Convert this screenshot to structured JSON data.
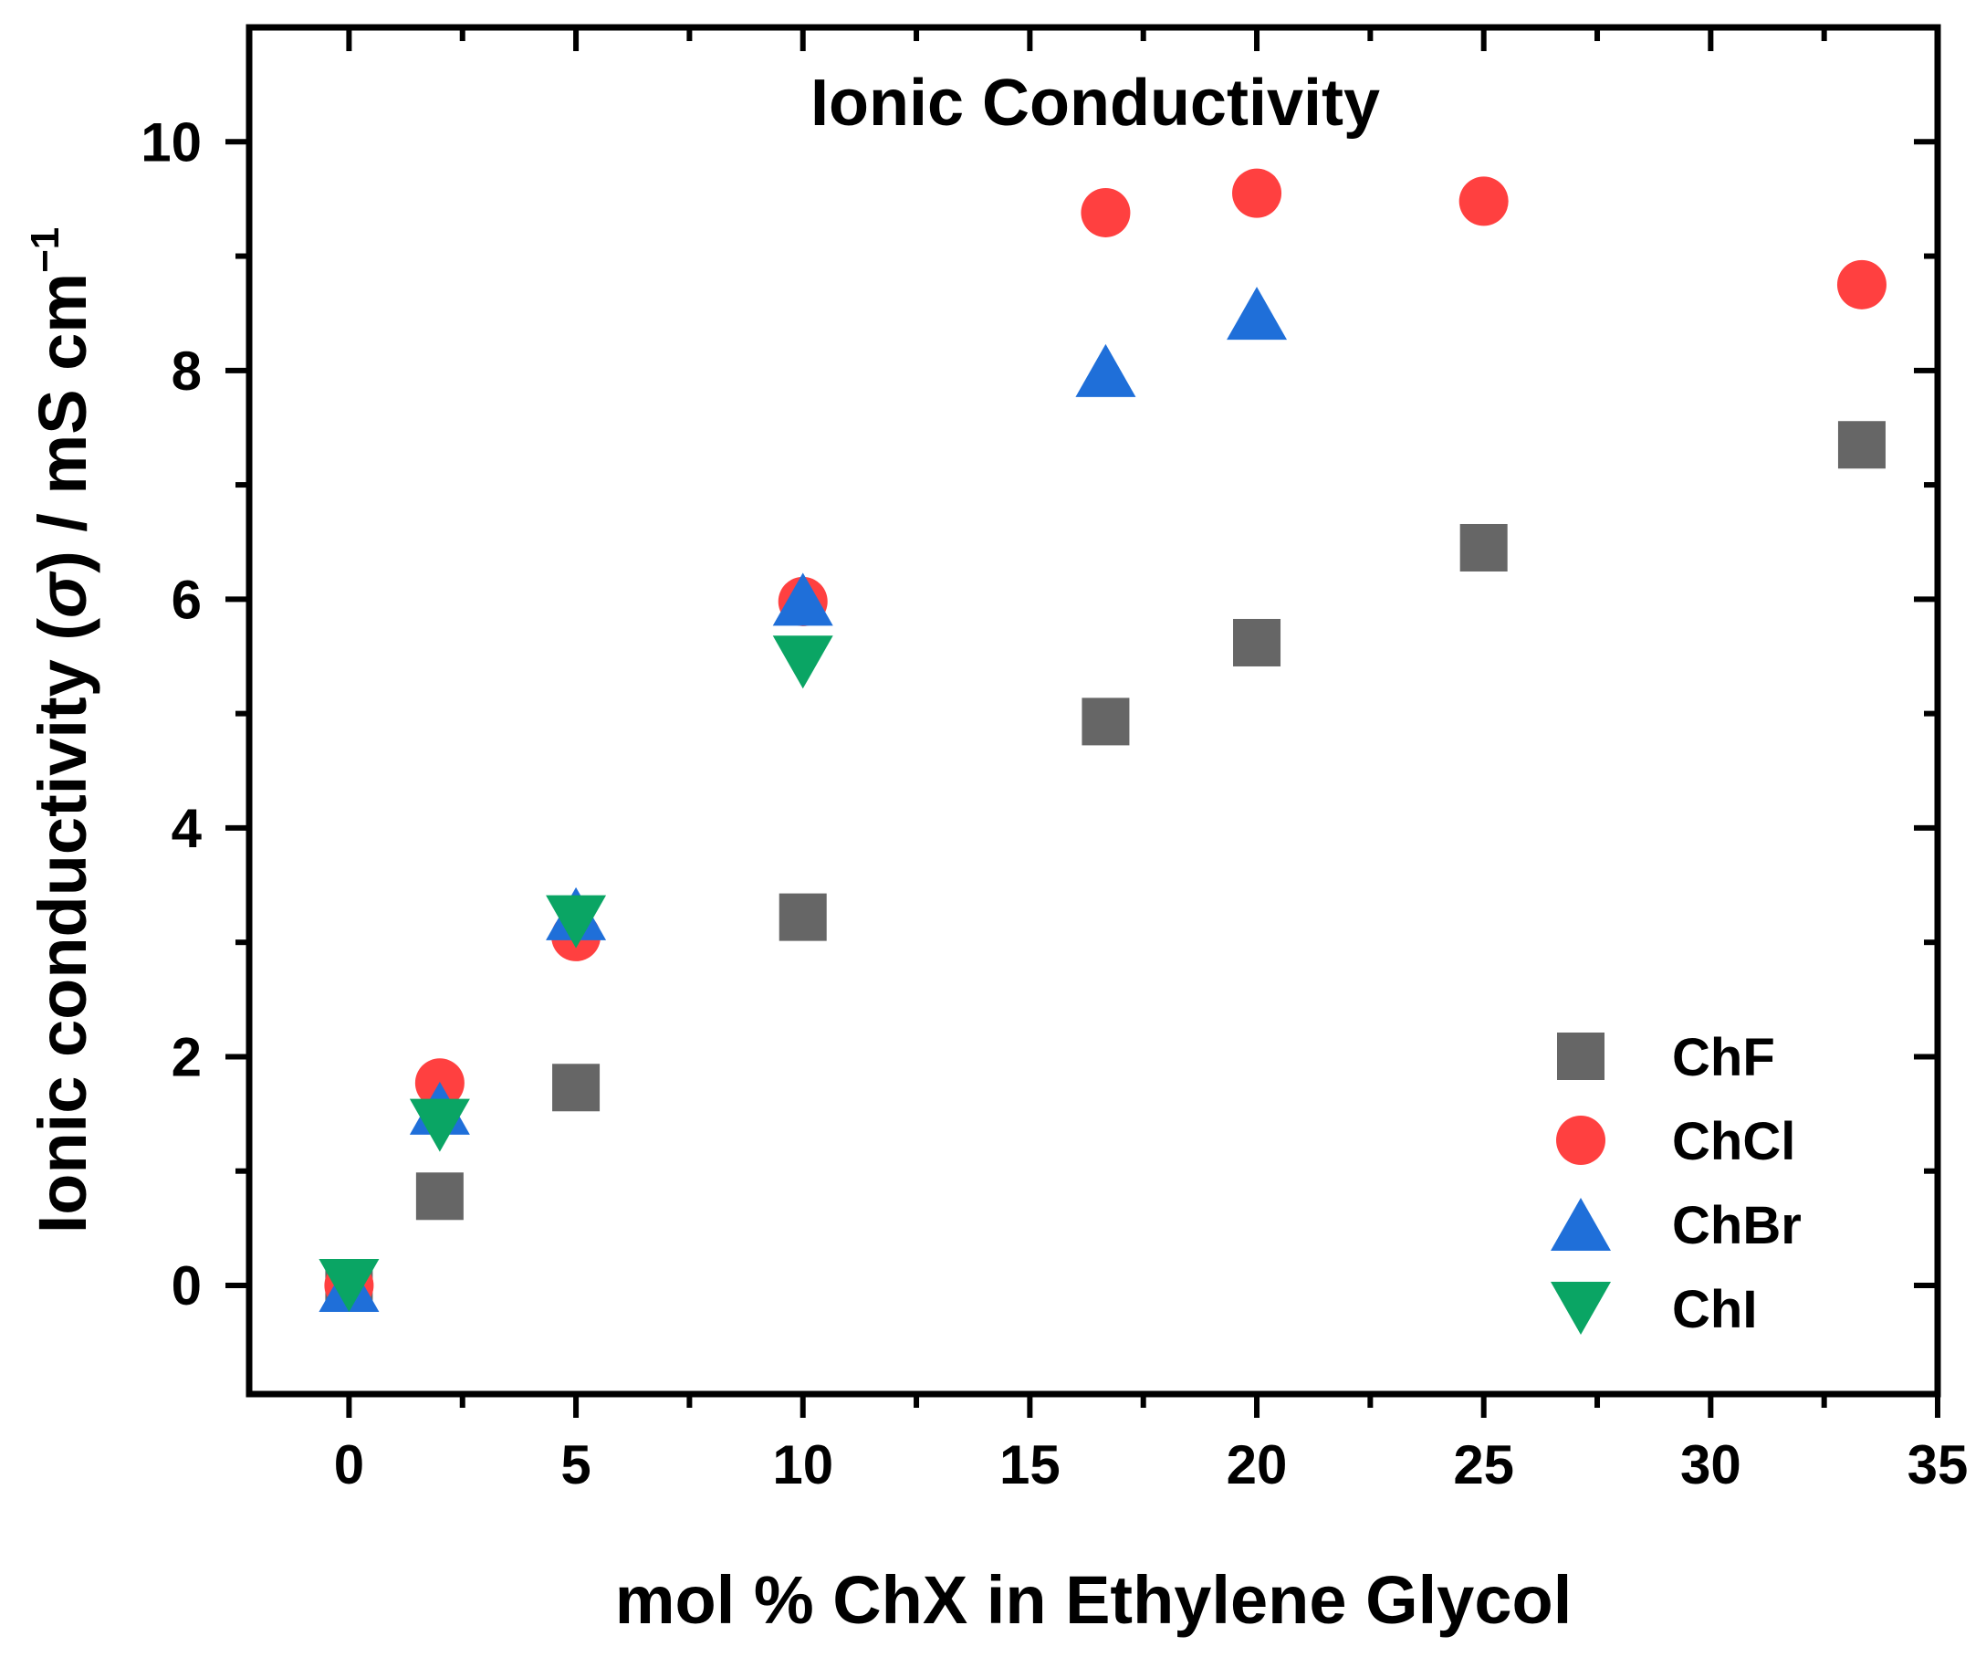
{
  "chart_data": {
    "type": "scatter",
    "title": "Ionic Conductivity",
    "xlabel": "mol % ChX in Ethylene Glycol",
    "ylabel": "Ionic conductivity (σ) / mS cm⁻¹",
    "ylabel_parts": {
      "main": "Ionic conductivity (",
      "sigma": "σ",
      "unit": ") / mS cm",
      "sup": "−1"
    },
    "xlim": [
      -2.2,
      35
    ],
    "ylim": [
      -0.95,
      11
    ],
    "x_ticks": [
      0,
      5,
      10,
      15,
      20,
      25,
      30,
      35
    ],
    "x_tick_labels": [
      "0",
      "5",
      "10",
      "15",
      "20",
      "25",
      "30",
      "35"
    ],
    "y_ticks": [
      0,
      2,
      4,
      6,
      8,
      10
    ],
    "y_tick_labels": [
      "0",
      "2",
      "4",
      "6",
      "8",
      "10"
    ],
    "legend_position": "bottom-right",
    "series": [
      {
        "name": "ChF",
        "marker": "square",
        "color": "#666666",
        "x": [
          0,
          2,
          5,
          10,
          16.67,
          20,
          25,
          33.33
        ],
        "y": [
          0,
          0.78,
          1.73,
          3.22,
          4.93,
          5.62,
          6.45,
          7.35
        ]
      },
      {
        "name": "ChCl",
        "marker": "circle",
        "color": "#ff4040",
        "x": [
          0,
          2,
          5,
          10,
          16.67,
          20,
          25,
          33.33
        ],
        "y": [
          0,
          1.77,
          3.05,
          5.98,
          9.38,
          9.55,
          9.48,
          8.75
        ]
      },
      {
        "name": "ChBr",
        "marker": "triangle-up",
        "color": "#1f6fd9",
        "x": [
          0,
          2,
          5,
          10,
          16.67,
          20
        ],
        "y": [
          0,
          1.55,
          3.25,
          6.0,
          8.0,
          8.5
        ]
      },
      {
        "name": "ChI",
        "marker": "triangle-down",
        "color": "#0aa564",
        "x": [
          0,
          2,
          5,
          10
        ],
        "y": [
          0,
          1.4,
          3.18,
          5.45
        ]
      }
    ]
  }
}
